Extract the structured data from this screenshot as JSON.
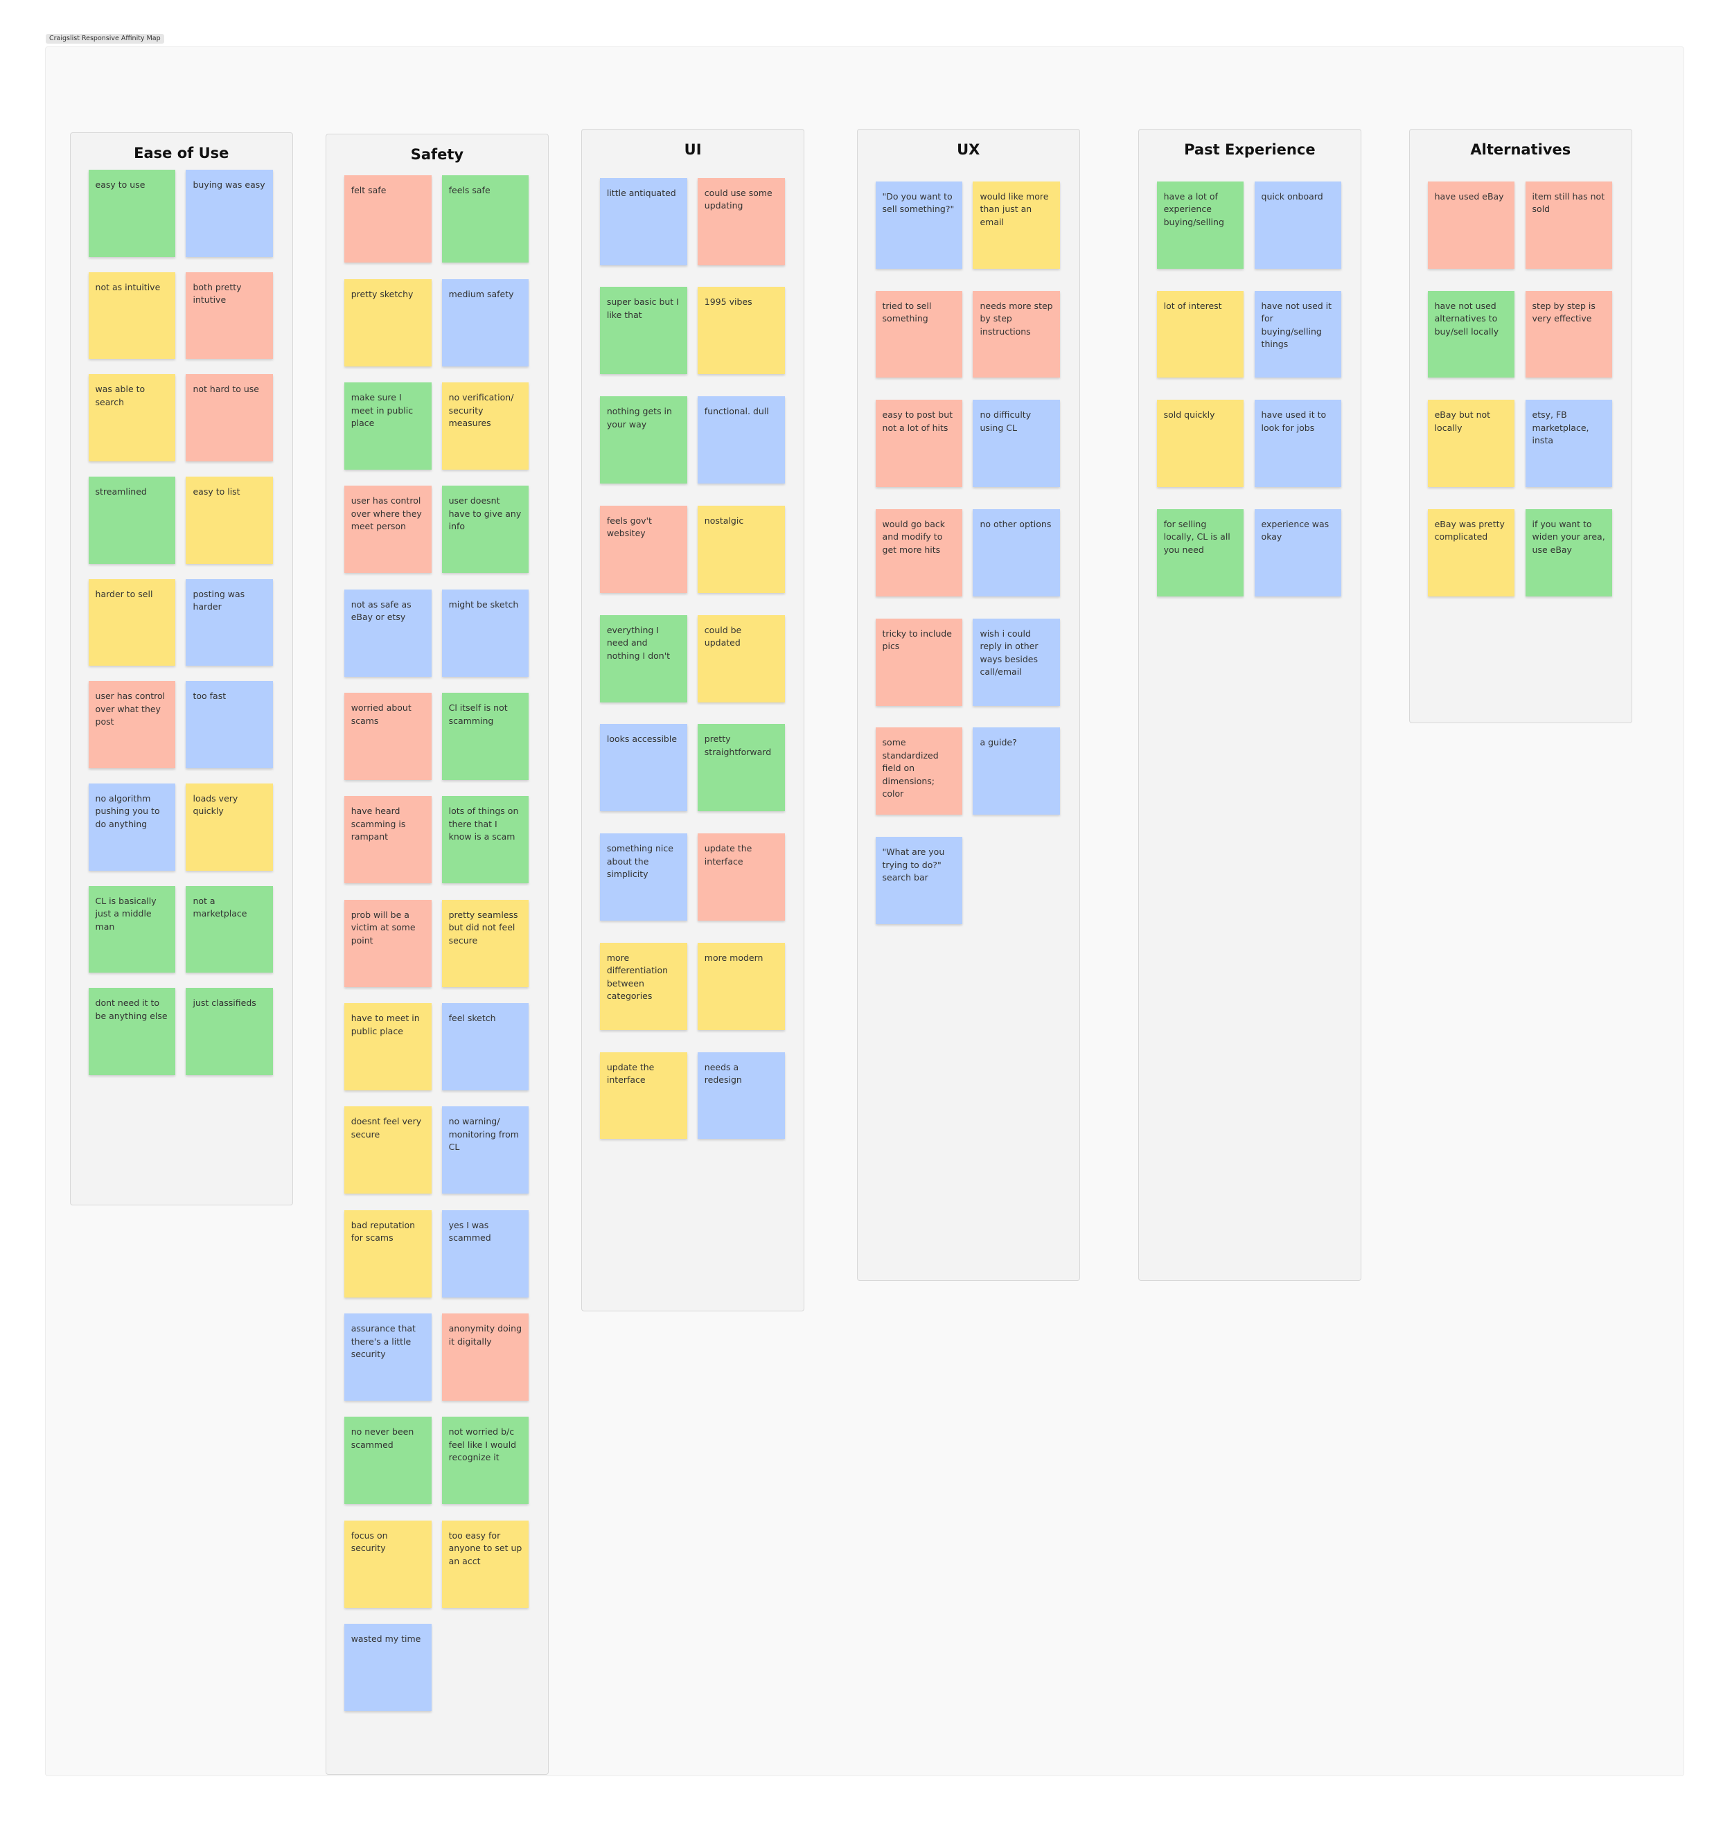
{
  "title": "Craigslist Responsive Affinity Map",
  "columns": [
    {
      "title": "Ease of Use",
      "notes": [
        {
          "text": "easy to use",
          "color": "#93e296"
        },
        {
          "text": "buying was easy",
          "color": "#b3cefe"
        },
        {
          "text": "not as intuitive",
          "color": "#fde47c"
        },
        {
          "text": "both pretty intutive",
          "color": "#fdbbaa"
        },
        {
          "text": "was able to search",
          "color": "#fde47c"
        },
        {
          "text": "not hard to use",
          "color": "#fdbbaa"
        },
        {
          "text": "streamlined",
          "color": "#93e296"
        },
        {
          "text": "easy to list",
          "color": "#fde47c"
        },
        {
          "text": "harder to sell",
          "color": "#fde47c"
        },
        {
          "text": "posting was harder",
          "color": "#b3cefe"
        },
        {
          "text": "user has control over what they post",
          "color": "#fdbbaa"
        },
        {
          "text": "too fast",
          "color": "#b3cefe"
        },
        {
          "text": "no algorithm pushing you to do anything",
          "color": "#b3cefe"
        },
        {
          "text": "loads very quickly",
          "color": "#fde47c"
        },
        {
          "text": "CL is basically just a middle man",
          "color": "#93e296"
        },
        {
          "text": "not a marketplace",
          "color": "#93e296"
        },
        {
          "text": "dont need it to be anything else",
          "color": "#93e296"
        },
        {
          "text": "just classifieds",
          "color": "#93e296"
        }
      ]
    },
    {
      "title": "Safety",
      "notes": [
        {
          "text": "felt safe",
          "color": "#fdbbaa"
        },
        {
          "text": "feels safe",
          "color": "#93e296"
        },
        {
          "text": "pretty sketchy",
          "color": "#fde47c"
        },
        {
          "text": "medium safety",
          "color": "#b3cefe"
        },
        {
          "text": "make sure I meet in public place",
          "color": "#93e296"
        },
        {
          "text": "no verification/ security measures",
          "color": "#fde47c"
        },
        {
          "text": "user has control over where they meet person",
          "color": "#fdbbaa"
        },
        {
          "text": "user doesnt have to give any info",
          "color": "#93e296"
        },
        {
          "text": "not as safe as eBay or etsy",
          "color": "#b3cefe"
        },
        {
          "text": "might be sketch",
          "color": "#b3cefe"
        },
        {
          "text": "worried about scams",
          "color": "#fdbbaa"
        },
        {
          "text": "Cl itself is not scamming",
          "color": "#93e296"
        },
        {
          "text": "have heard scamming is rampant",
          "color": "#fdbbaa"
        },
        {
          "text": "lots of things on there that I know is a scam",
          "color": "#93e296"
        },
        {
          "text": "prob will be a victim at some point",
          "color": "#fdbbaa"
        },
        {
          "text": "pretty seamless but did not feel secure",
          "color": "#fde47c"
        },
        {
          "text": "have to meet in public place",
          "color": "#fde47c"
        },
        {
          "text": "feel sketch",
          "color": "#b3cefe"
        },
        {
          "text": "doesnt feel very secure",
          "color": "#fde47c"
        },
        {
          "text": "no warning/ monitoring from CL",
          "color": "#b3cefe"
        },
        {
          "text": "bad reputation for scams",
          "color": "#fde47c"
        },
        {
          "text": "yes I was scammed",
          "color": "#b3cefe"
        },
        {
          "text": "assurance that there's a little security",
          "color": "#b3cefe"
        },
        {
          "text": "anonymity doing it digitally",
          "color": "#fdbbaa"
        },
        {
          "text": "no never been scammed",
          "color": "#93e296"
        },
        {
          "text": "not worried b/c feel like I would recognize it",
          "color": "#93e296"
        },
        {
          "text": "focus on security",
          "color": "#fde47c"
        },
        {
          "text": "too easy for anyone to set up an acct",
          "color": "#fde47c"
        },
        {
          "text": "wasted my time",
          "color": "#b3cefe"
        }
      ]
    },
    {
      "title": "UI",
      "notes": [
        {
          "text": "little antiquated",
          "color": "#b3cefe"
        },
        {
          "text": "could use some updating",
          "color": "#fdbbaa"
        },
        {
          "text": "super basic but I like that",
          "color": "#93e296"
        },
        {
          "text": "1995 vibes",
          "color": "#fde47c"
        },
        {
          "text": "nothing gets in your way",
          "color": "#93e296"
        },
        {
          "text": "functional. dull",
          "color": "#b3cefe"
        },
        {
          "text": "feels gov't websitey",
          "color": "#fdbbaa"
        },
        {
          "text": "nostalgic",
          "color": "#fde47c"
        },
        {
          "text": "everything I need and nothing I don't",
          "color": "#93e296"
        },
        {
          "text": "could be updated",
          "color": "#fde47c"
        },
        {
          "text": "looks accessible",
          "color": "#b3cefe"
        },
        {
          "text": "pretty straightforward",
          "color": "#93e296"
        },
        {
          "text": "something nice about the simplicity",
          "color": "#b3cefe"
        },
        {
          "text": "update the interface",
          "color": "#fdbbaa"
        },
        {
          "text": "more differentiation between categories",
          "color": "#fde47c"
        },
        {
          "text": "more modern",
          "color": "#fde47c"
        },
        {
          "text": "update the interface",
          "color": "#fde47c"
        },
        {
          "text": "needs a redesign",
          "color": "#b3cefe"
        }
      ]
    },
    {
      "title": "UX",
      "notes": [
        {
          "text": "\"Do you want to sell something?\"",
          "color": "#b3cefe"
        },
        {
          "text": "would like more than just an email",
          "color": "#fde47c"
        },
        {
          "text": "tried to sell something",
          "color": "#fdbbaa"
        },
        {
          "text": "needs more step by step instructions",
          "color": "#fdbbaa"
        },
        {
          "text": "easy to post but not a lot of hits",
          "color": "#fdbbaa"
        },
        {
          "text": "no difficulty using CL",
          "color": "#b3cefe"
        },
        {
          "text": "would go back and modify to get more hits",
          "color": "#fdbbaa"
        },
        {
          "text": "no other options",
          "color": "#b3cefe"
        },
        {
          "text": "tricky to include pics",
          "color": "#fdbbaa"
        },
        {
          "text": "wish i could reply in other ways besides call/email",
          "color": "#b3cefe"
        },
        {
          "text": "some standardized field on dimensions; color",
          "color": "#fdbbaa"
        },
        {
          "text": "a guide?",
          "color": "#b3cefe"
        },
        {
          "text": "\"What are you trying to do?\" search bar",
          "color": "#b3cefe"
        }
      ]
    },
    {
      "title": "Past Experience",
      "notes": [
        {
          "text": "have a lot of experience buying/selling",
          "color": "#93e296"
        },
        {
          "text": "quick onboard",
          "color": "#b3cefe"
        },
        {
          "text": "lot of interest",
          "color": "#fde47c"
        },
        {
          "text": "have not used it for buying/selling things",
          "color": "#b3cefe"
        },
        {
          "text": "sold quickly",
          "color": "#fde47c"
        },
        {
          "text": "have used it to look for jobs",
          "color": "#b3cefe"
        },
        {
          "text": "for selling locally, CL is all you need",
          "color": "#93e296"
        },
        {
          "text": "experience was okay",
          "color": "#b3cefe"
        }
      ]
    },
    {
      "title": "Alternatives",
      "notes": [
        {
          "text": "have used eBay",
          "color": "#fdbbaa"
        },
        {
          "text": "item still has not sold",
          "color": "#fdbbaa"
        },
        {
          "text": "have not used alternatives to buy/sell locally",
          "color": "#93e296"
        },
        {
          "text": "step by step is very effective",
          "color": "#fdbbaa"
        },
        {
          "text": "eBay but not locally",
          "color": "#fde47c"
        },
        {
          "text": "etsy, FB marketplace, insta",
          "color": "#b3cefe"
        },
        {
          "text": "eBay was pretty complicated",
          "color": "#fde47c"
        },
        {
          "text": "if you want to widen your area, use eBay",
          "color": "#93e296"
        }
      ]
    }
  ]
}
